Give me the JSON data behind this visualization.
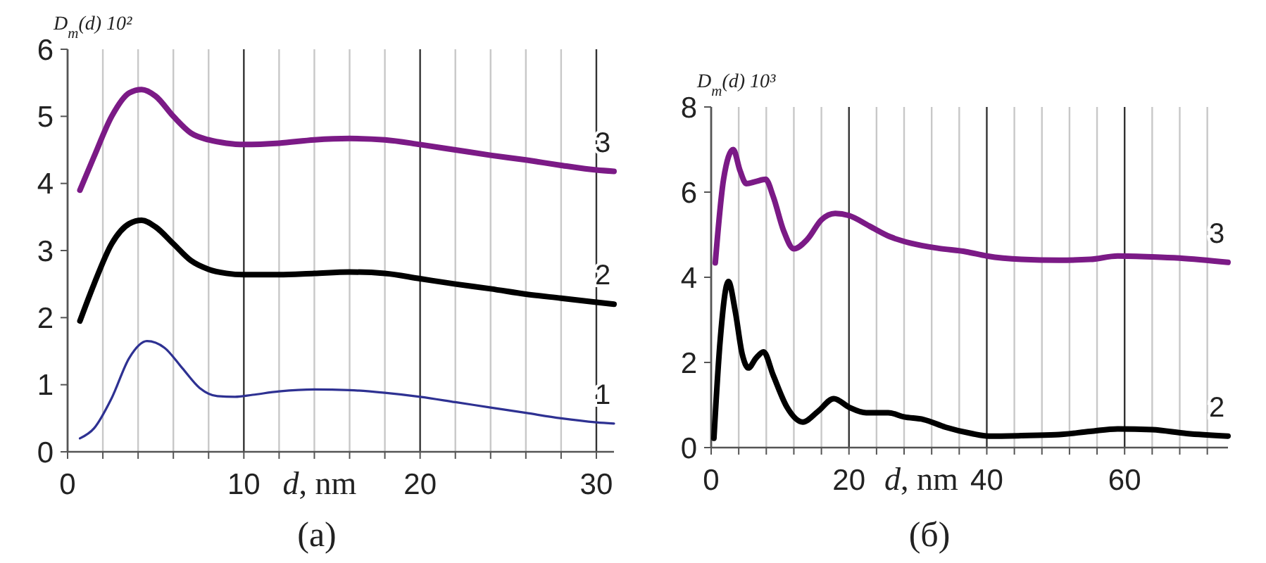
{
  "chart_data": [
    {
      "type": "line",
      "title": "(a)",
      "xlabel": "d, nm",
      "ylabel": "D$_{m}$(d) 10²",
      "xlim": [
        0,
        31
      ],
      "ylim": [
        0,
        6
      ],
      "xticks": [
        0,
        {
          "value": 2,
          "label": null
        },
        {
          "value": 4,
          "label": null
        },
        {
          "value": 6,
          "label": null
        },
        {
          "value": 8,
          "label": null
        },
        10,
        {
          "value": 12,
          "label": null
        },
        {
          "value": 14,
          "label": null
        },
        {
          "value": 16,
          "label": null
        },
        {
          "value": 18,
          "label": null
        },
        20,
        {
          "value": 22,
          "label": null
        },
        {
          "value": 24,
          "label": null
        },
        {
          "value": 26,
          "label": null
        },
        {
          "value": 28,
          "label": null
        },
        30
      ],
      "yticks": [
        0,
        1,
        2,
        3,
        4,
        5,
        6
      ],
      "grid": "x",
      "marker": "none",
      "line_style": "solid",
      "series": [
        {
          "name": "3",
          "color": "#7b1a86",
          "x": [
            0.7,
            1.5,
            2.5,
            3.5,
            4.2,
            5,
            6,
            7,
            8,
            9,
            10,
            12,
            14,
            16,
            18,
            20,
            22,
            24,
            26,
            28,
            30,
            31
          ],
          "values": [
            3.9,
            4.4,
            5.0,
            5.35,
            5.4,
            5.3,
            5.0,
            4.75,
            4.65,
            4.6,
            4.58,
            4.6,
            4.65,
            4.67,
            4.65,
            4.58,
            4.5,
            4.42,
            4.35,
            4.27,
            4.2,
            4.18
          ]
        },
        {
          "name": "2",
          "color": "#000000",
          "x": [
            0.7,
            1.5,
            2.5,
            3.5,
            4.2,
            5,
            6,
            7,
            8,
            9,
            10,
            12,
            14,
            16,
            18,
            20,
            22,
            24,
            26,
            28,
            30,
            31
          ],
          "values": [
            1.95,
            2.5,
            3.1,
            3.4,
            3.45,
            3.35,
            3.1,
            2.85,
            2.72,
            2.66,
            2.64,
            2.64,
            2.66,
            2.68,
            2.66,
            2.58,
            2.5,
            2.43,
            2.35,
            2.29,
            2.23,
            2.2
          ]
        },
        {
          "name": "1",
          "color": "#2e3192",
          "x": [
            0.7,
            1.5,
            2.5,
            3.5,
            4.5,
            5.5,
            6.5,
            7.5,
            8.5,
            9.5,
            10.5,
            12,
            14,
            16,
            18,
            20,
            22,
            24,
            26,
            28,
            30,
            31
          ],
          "values": [
            0.2,
            0.35,
            0.8,
            1.4,
            1.65,
            1.55,
            1.25,
            0.95,
            0.83,
            0.82,
            0.85,
            0.9,
            0.93,
            0.92,
            0.88,
            0.82,
            0.74,
            0.66,
            0.58,
            0.5,
            0.44,
            0.42
          ]
        }
      ]
    },
    {
      "type": "line",
      "title": "(б)",
      "xlabel": "d, nm",
      "ylabel": "D$_{m}$(d) 10³",
      "xlim": [
        0,
        75
      ],
      "ylim": [
        0,
        8
      ],
      "xticks": [
        0,
        {
          "value": 4,
          "label": null
        },
        {
          "value": 8,
          "label": null
        },
        {
          "value": 12,
          "label": null
        },
        {
          "value": 16,
          "label": null
        },
        20,
        {
          "value": 24,
          "label": null
        },
        {
          "value": 28,
          "label": null
        },
        {
          "value": 32,
          "label": null
        },
        {
          "value": 36,
          "label": null
        },
        40,
        {
          "value": 44,
          "label": null
        },
        {
          "value": 48,
          "label": null
        },
        {
          "value": 52,
          "label": null
        },
        {
          "value": 56,
          "label": null
        },
        60,
        {
          "value": 64,
          "label": null
        },
        {
          "value": 68,
          "label": null
        },
        {
          "value": 72,
          "label": null
        }
      ],
      "yticks": [
        0,
        2,
        4,
        6,
        8
      ],
      "grid": "x",
      "marker": "none",
      "line_style": "solid",
      "series": [
        {
          "name": "3",
          "color": "#7b1a86",
          "x": [
            0.6,
            1.8,
            3.2,
            4.2,
            5.1,
            6.5,
            7.9,
            9,
            10.5,
            12,
            14,
            16,
            18,
            20,
            23,
            26,
            29,
            33,
            37,
            40,
            45,
            50.5,
            55,
            59,
            64,
            68,
            75
          ],
          "values": [
            4.34,
            6.3,
            7.0,
            6.5,
            6.2,
            6.25,
            6.3,
            5.9,
            5.1,
            4.67,
            4.9,
            5.35,
            5.5,
            5.45,
            5.2,
            4.95,
            4.8,
            4.68,
            4.6,
            4.5,
            4.42,
            4.4,
            4.42,
            4.5,
            4.48,
            4.45,
            4.35
          ]
        },
        {
          "name": "2",
          "color": "#000000",
          "x": [
            0.4,
            1.3,
            2.5,
            3.5,
            4.5,
            5.4,
            6.5,
            7.6,
            9,
            11,
            13.3,
            15.5,
            17.8,
            20,
            22.5,
            25.7,
            28,
            30.8,
            34,
            37.8,
            40.3,
            45,
            50,
            55,
            59,
            64,
            69,
            75
          ],
          "values": [
            0.22,
            2.5,
            3.9,
            3.2,
            2.2,
            1.87,
            2.1,
            2.25,
            1.7,
            0.95,
            0.6,
            0.85,
            1.15,
            0.95,
            0.82,
            0.82,
            0.72,
            0.66,
            0.48,
            0.33,
            0.27,
            0.28,
            0.3,
            0.38,
            0.44,
            0.42,
            0.33,
            0.27
          ]
        }
      ]
    }
  ]
}
